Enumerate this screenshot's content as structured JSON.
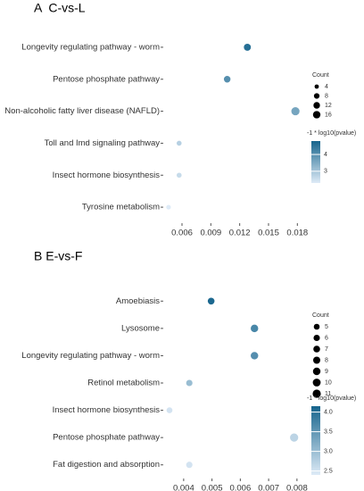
{
  "chart_data": [
    {
      "type": "scatter",
      "title": "A  C-vs-L",
      "categories": [
        "Longevity regulating pathway - worm",
        "Pentose phosphate pathway",
        "Non-alcoholic fatty liver disease (NAFLD)",
        "Toll and Imd signaling pathway",
        "Insect hormone biosynthesis",
        "Tyrosine metabolism"
      ],
      "x": [
        0.0128,
        0.0107,
        0.0178,
        0.0057,
        0.0057,
        0.0046
      ],
      "count": [
        14,
        12,
        20,
        6,
        6,
        5
      ],
      "neg_log10_pvalue": [
        4.6,
        4.0,
        3.6,
        2.8,
        2.6,
        2.3
      ],
      "xlim": [
        0.00405,
        0.0189
      ],
      "xticks": [
        0.006,
        0.009,
        0.012,
        0.015,
        0.018
      ],
      "size_legend": {
        "title": "Count",
        "values": [
          4,
          8,
          12,
          16
        ]
      },
      "color_legend": {
        "title": "-1 * log10(pvalue)",
        "lim": [
          2.3,
          4.8
        ],
        "ticks": [
          3,
          4
        ]
      },
      "color_low": "#deebf7",
      "color_high": "#16648c"
    },
    {
      "type": "scatter",
      "title": "B E-vs-F",
      "categories": [
        "Amoebiasis",
        "Lysosome",
        "Longevity regulating pathway - worm",
        "Retinol metabolism",
        "Insect hormone biosynthesis",
        "Pentose phosphate pathway",
        "Fat digestion and absorption"
      ],
      "x": [
        0.00497,
        0.0065,
        0.0065,
        0.0042,
        0.0035,
        0.0079,
        0.0042
      ],
      "count": [
        7,
        9,
        9,
        6,
        5,
        11,
        6
      ],
      "neg_log10_pvalue": [
        4.1,
        3.7,
        3.6,
        3.0,
        2.5,
        2.7,
        2.5
      ],
      "xlim": [
        0.00328,
        0.00854
      ],
      "xticks": [
        0.004,
        0.005,
        0.006,
        0.007,
        0.008
      ],
      "size_legend": {
        "title": "Count",
        "values": [
          5,
          6,
          7,
          8,
          9,
          10,
          11
        ]
      },
      "color_legend": {
        "title": "-1 * log10(pvalue)",
        "lim": [
          2.4,
          4.15
        ],
        "ticks": [
          {
            "value": 2.5,
            "label": "2.5"
          },
          {
            "value": 3,
            "label": "3.0"
          },
          {
            "value": 3.5,
            "label": "3.5"
          },
          {
            "value": 4,
            "label": "4.0"
          }
        ]
      },
      "color_low": "#deebf7",
      "color_high": "#16648c"
    }
  ]
}
